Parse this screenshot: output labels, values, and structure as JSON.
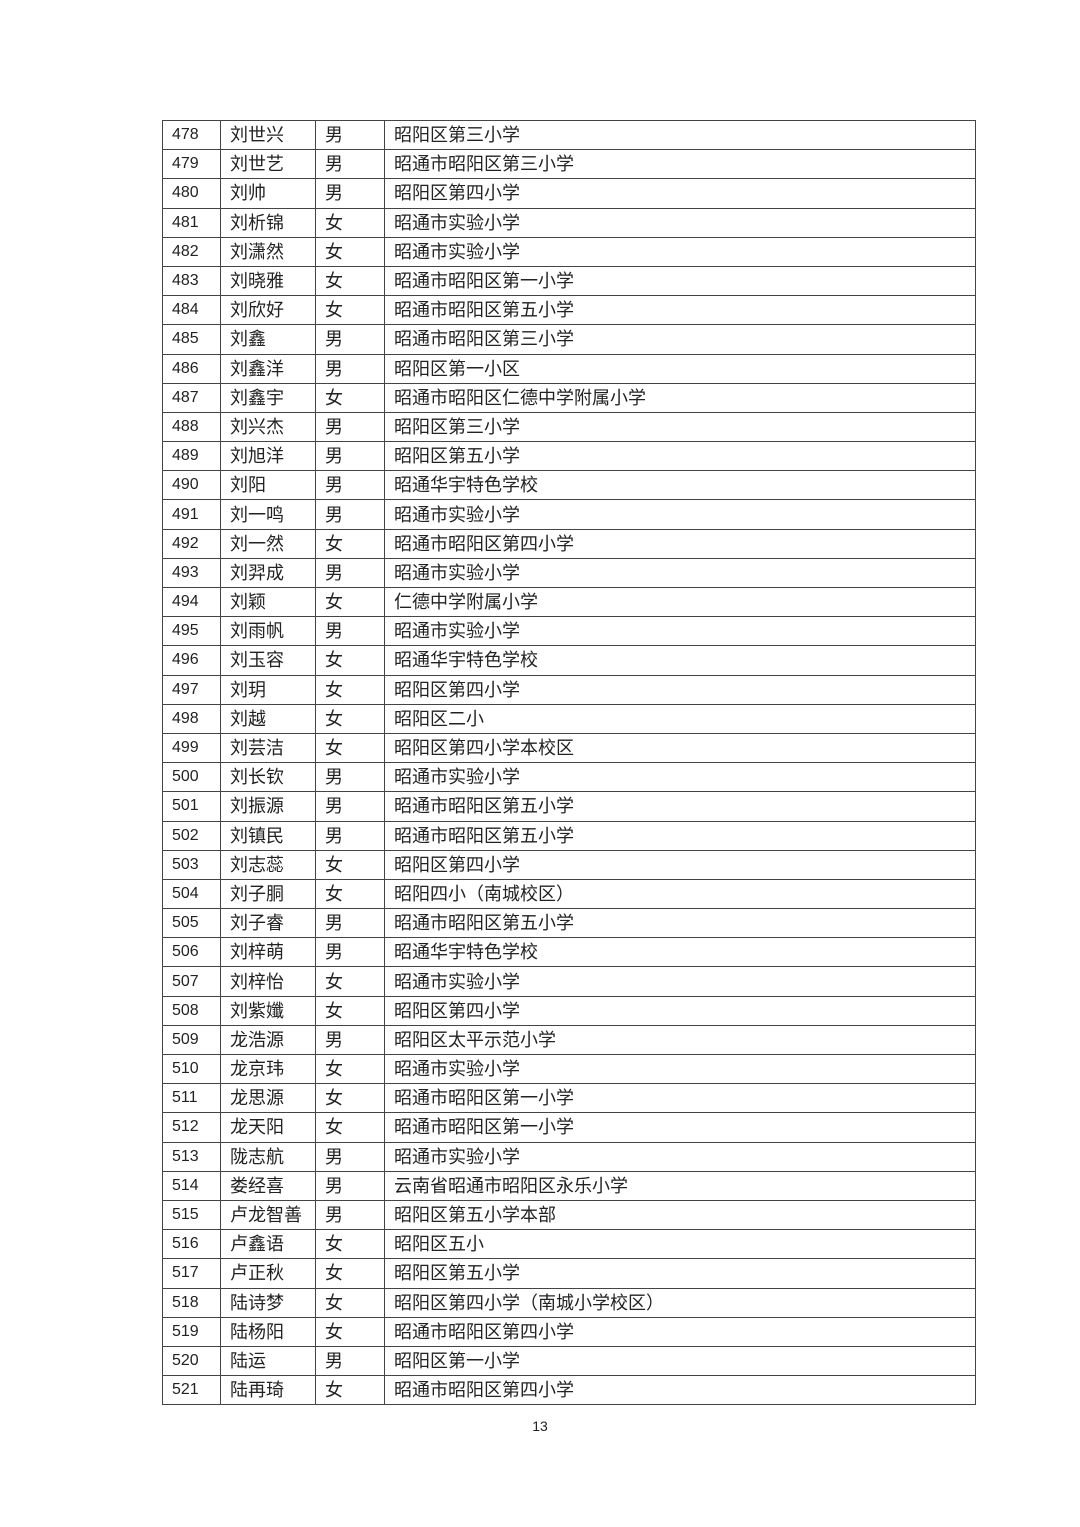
{
  "table": {
    "rows": [
      [
        "478",
        "刘世兴",
        "男",
        "昭阳区第三小学"
      ],
      [
        "479",
        "刘世艺",
        "男",
        "昭通市昭阳区第三小学"
      ],
      [
        "480",
        "刘帅",
        "男",
        "昭阳区第四小学"
      ],
      [
        "481",
        "刘析锦",
        "女",
        "昭通市实验小学"
      ],
      [
        "482",
        "刘潇然",
        "女",
        "昭通市实验小学"
      ],
      [
        "483",
        "刘晓雅",
        "女",
        "昭通市昭阳区第一小学"
      ],
      [
        "484",
        "刘欣好",
        "女",
        "昭通市昭阳区第五小学"
      ],
      [
        "485",
        "刘鑫",
        "男",
        "昭通市昭阳区第三小学"
      ],
      [
        "486",
        "刘鑫洋",
        "男",
        "昭阳区第一小区"
      ],
      [
        "487",
        "刘鑫宇",
        "女",
        "昭通市昭阳区仁德中学附属小学"
      ],
      [
        "488",
        "刘兴杰",
        "男",
        "昭阳区第三小学"
      ],
      [
        "489",
        "刘旭洋",
        "男",
        "昭阳区第五小学"
      ],
      [
        "490",
        "刘阳",
        "男",
        "昭通华宇特色学校"
      ],
      [
        "491",
        "刘一鸣",
        "男",
        "昭通市实验小学"
      ],
      [
        "492",
        "刘一然",
        "女",
        "昭通市昭阳区第四小学"
      ],
      [
        "493",
        "刘羿成",
        "男",
        "昭通市实验小学"
      ],
      [
        "494",
        "刘颖",
        "女",
        "仁德中学附属小学"
      ],
      [
        "495",
        "刘雨帆",
        "男",
        "昭通市实验小学"
      ],
      [
        "496",
        "刘玉容",
        "女",
        "昭通华宇特色学校"
      ],
      [
        "497",
        "刘玥",
        "女",
        "昭阳区第四小学"
      ],
      [
        "498",
        "刘越",
        "女",
        "昭阳区二小"
      ],
      [
        "499",
        "刘芸洁",
        "女",
        "昭阳区第四小学本校区"
      ],
      [
        "500",
        "刘长钦",
        "男",
        "昭通市实验小学"
      ],
      [
        "501",
        "刘振源",
        "男",
        "昭通市昭阳区第五小学"
      ],
      [
        "502",
        "刘镇民",
        "男",
        "昭通市昭阳区第五小学"
      ],
      [
        "503",
        "刘志蕊",
        "女",
        "昭阳区第四小学"
      ],
      [
        "504",
        "刘子胴",
        "女",
        "昭阳四小（南城校区）"
      ],
      [
        "505",
        "刘子睿",
        "男",
        "昭通市昭阳区第五小学"
      ],
      [
        "506",
        "刘梓萌",
        "男",
        "昭通华宇特色学校"
      ],
      [
        "507",
        "刘梓怡",
        "女",
        "昭通市实验小学"
      ],
      [
        "508",
        "刘紫孅",
        "女",
        "昭阳区第四小学"
      ],
      [
        "509",
        "龙浩源",
        "男",
        "昭阳区太平示范小学"
      ],
      [
        "510",
        "龙京玮",
        "女",
        "昭通市实验小学"
      ],
      [
        "511",
        "龙思源",
        "女",
        "昭通市昭阳区第一小学"
      ],
      [
        "512",
        "龙天阳",
        "女",
        "昭通市昭阳区第一小学"
      ],
      [
        "513",
        "陇志航",
        "男",
        "昭通市实验小学"
      ],
      [
        "514",
        "娄经喜",
        "男",
        "云南省昭通市昭阳区永乐小学"
      ],
      [
        "515",
        "卢龙智善",
        "男",
        "昭阳区第五小学本部"
      ],
      [
        "516",
        "卢鑫语",
        "女",
        "昭阳区五小"
      ],
      [
        "517",
        "卢正秋",
        "女",
        "昭阳区第五小学"
      ],
      [
        "518",
        "陆诗梦",
        "女",
        "昭阳区第四小学（南城小学校区）"
      ],
      [
        "519",
        "陆杨阳",
        "女",
        "昭通市昭阳区第四小学"
      ],
      [
        "520",
        "陆运",
        "男",
        "昭阳区第一小学"
      ],
      [
        "521",
        "陆再琦",
        "女",
        "昭通市昭阳区第四小学"
      ]
    ]
  },
  "footer": {
    "page_number": "13"
  }
}
